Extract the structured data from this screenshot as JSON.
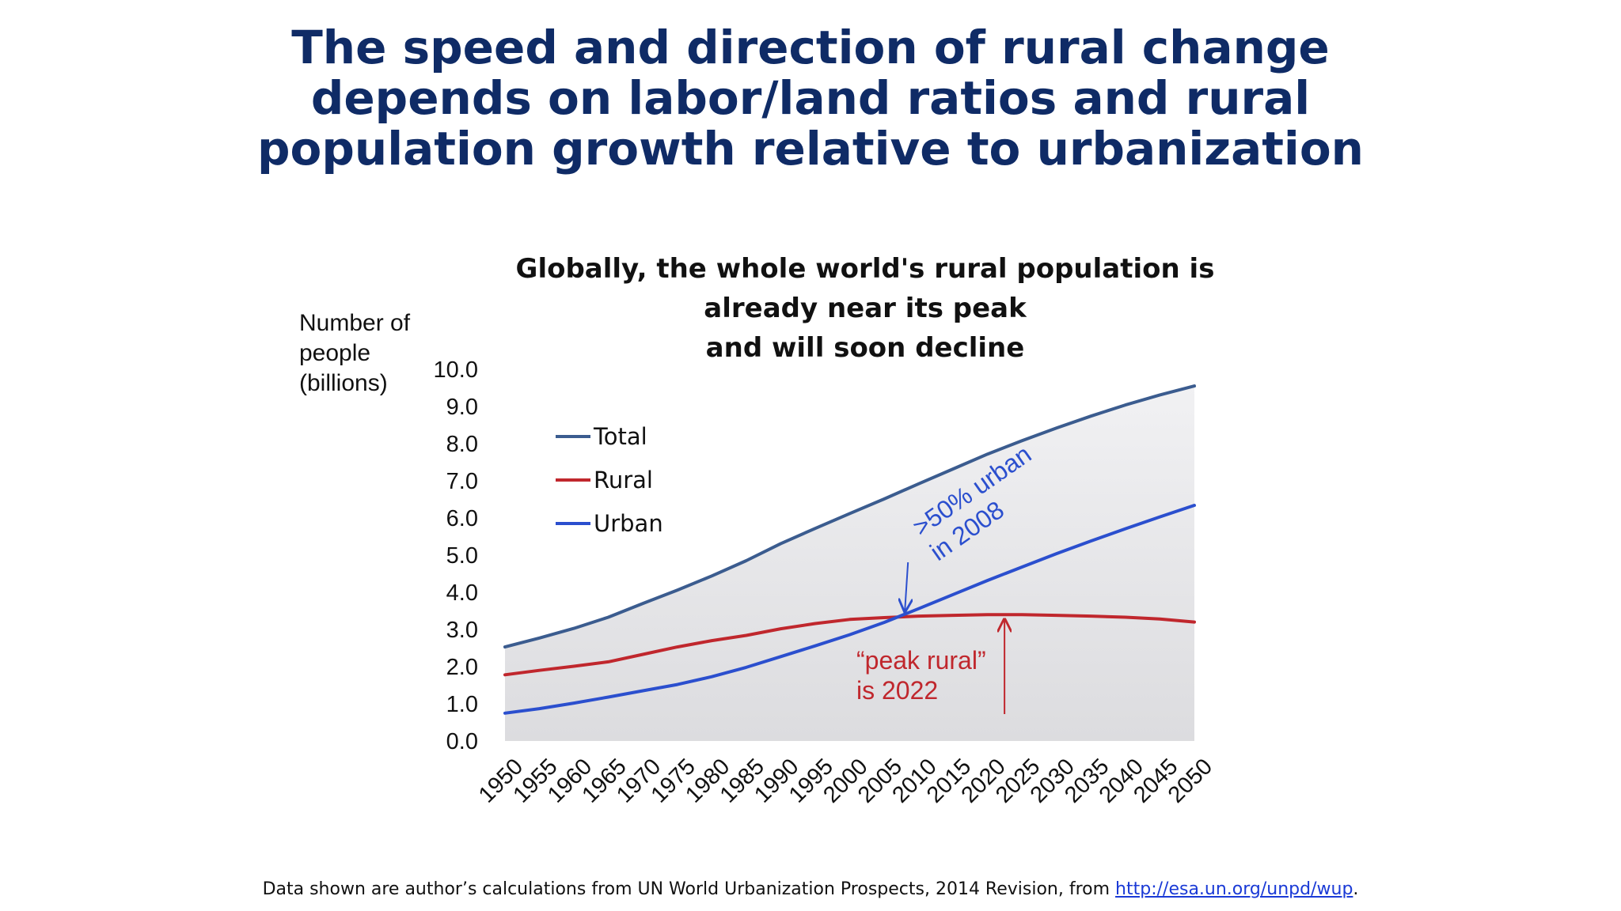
{
  "slide": {
    "title_lines": [
      "The speed and direction of rural change",
      "depends on labor/land ratios and rural",
      "population growth relative to urbanization"
    ],
    "footer": {
      "text": "Data shown are author’s calculations  from UN World Urbanization Prospects, 2014 Revision, from ",
      "link_text": "http://esa.un.org/unpd/wup",
      "end": "."
    }
  },
  "chart_data": {
    "type": "line",
    "title_lines": [
      "Globally, the whole world's rural population is",
      "already near its peak",
      "and will soon decline"
    ],
    "ylabel_lines": [
      "Number of",
      "people",
      "(billions)"
    ],
    "xlabel": "",
    "ylim": [
      0,
      10
    ],
    "yticks": [
      "0.0",
      "1.0",
      "2.0",
      "3.0",
      "4.0",
      "5.0",
      "6.0",
      "7.0",
      "8.0",
      "9.0",
      "10.0"
    ],
    "x": [
      1950,
      1955,
      1960,
      1965,
      1970,
      1975,
      1980,
      1985,
      1990,
      1995,
      2000,
      2005,
      2010,
      2015,
      2020,
      2025,
      2030,
      2035,
      2040,
      2045,
      2050
    ],
    "series": [
      {
        "name": "Total",
        "color": "#3b5c8f",
        "values": [
          2.53,
          2.77,
          3.03,
          3.33,
          3.7,
          4.06,
          4.44,
          4.85,
          5.31,
          5.72,
          6.12,
          6.51,
          6.92,
          7.32,
          7.72,
          8.08,
          8.42,
          8.74,
          9.04,
          9.31,
          9.55
        ]
      },
      {
        "name": "Rural",
        "color": "#c0272d",
        "values": [
          1.78,
          1.9,
          2.01,
          2.13,
          2.33,
          2.53,
          2.7,
          2.84,
          3.02,
          3.16,
          3.27,
          3.32,
          3.36,
          3.38,
          3.4,
          3.4,
          3.38,
          3.36,
          3.33,
          3.28,
          3.2
        ]
      },
      {
        "name": "Urban",
        "color": "#2b4fce",
        "values": [
          0.75,
          0.87,
          1.02,
          1.18,
          1.35,
          1.52,
          1.73,
          1.98,
          2.27,
          2.56,
          2.86,
          3.19,
          3.56,
          3.94,
          4.32,
          4.68,
          5.04,
          5.38,
          5.71,
          6.03,
          6.34
        ]
      }
    ],
    "legend": "upper-left",
    "fill_under": "Total",
    "annotations": [
      {
        "lines": [
          ">50% urban",
          "in 2008"
        ],
        "color": "#2b4fce",
        "arrow_to": {
          "x": 2008,
          "y": 3.36
        },
        "arrow_direction": "down"
      },
      {
        "lines": [
          "“peak rural”",
          "is 2022"
        ],
        "color": "#c0272d",
        "arrow_to": {
          "x": 2022,
          "y": 3.4
        },
        "arrow_direction": "up"
      }
    ]
  }
}
